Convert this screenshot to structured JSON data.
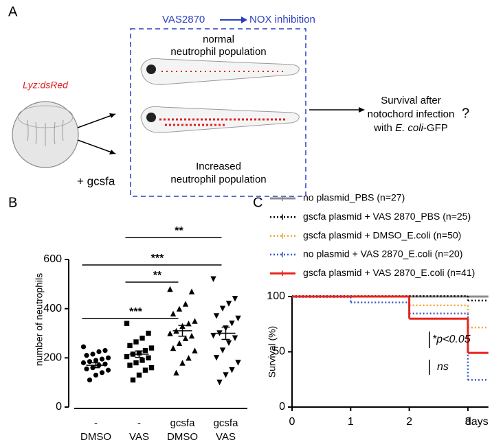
{
  "panel_labels": [
    "A",
    "B",
    "C"
  ],
  "panel_a": {
    "strain": "Lyz:dsRed",
    "treatment": "+ gcsfa",
    "drug": "VAS2870",
    "effect": "NOX inhibition",
    "normal": [
      "normal",
      "neutrophil population"
    ],
    "increased": [
      "Increased",
      "neutrophil population"
    ],
    "outcome": [
      "Survival after",
      "notochord infection"
    ],
    "outcome_last": [
      "with ",
      "E. coli",
      "-GFP"
    ],
    "question": "?"
  },
  "chart_data": [
    {
      "type": "dotplot",
      "ylabel": "number of neutrophils",
      "categories": [
        [
          "-",
          "DMSO"
        ],
        [
          "-",
          "VAS"
        ],
        [
          "gcsfa",
          "DMSO"
        ],
        [
          "gcsfa",
          "VAS"
        ]
      ],
      "markers": [
        "circle",
        "square",
        "triangle",
        "triangle-down"
      ],
      "color": "#000000",
      "points": [
        [
          245,
          230,
          225,
          215,
          210,
          200,
          195,
          190,
          185,
          180,
          175,
          170,
          160,
          155,
          150,
          140,
          130,
          110
        ],
        [
          340,
          300,
          280,
          265,
          250,
          240,
          230,
          220,
          215,
          205,
          200,
          190,
          180,
          170,
          160,
          150,
          130,
          110
        ],
        [
          480,
          470,
          420,
          400,
          380,
          350,
          340,
          330,
          310,
          300,
          290,
          280,
          260,
          240,
          230,
          200,
          180,
          140
        ],
        [
          520,
          440,
          420,
          400,
          370,
          360,
          340,
          320,
          300,
          290,
          280,
          260,
          230,
          200,
          180,
          150,
          130,
          100
        ]
      ],
      "means": [
        170,
        215,
        310,
        300
      ],
      "sem": [
        10,
        13,
        22,
        25
      ],
      "ylim": [
        0,
        600
      ],
      "yticks": [
        0,
        200,
        400,
        600
      ],
      "comparisons": [
        {
          "from": 0,
          "to": 2,
          "label": "***"
        },
        {
          "from": 0,
          "to": 3,
          "label": "***"
        },
        {
          "from": 1,
          "to": 2,
          "label": "**"
        },
        {
          "from": 1,
          "to": 3,
          "label": "**"
        }
      ]
    },
    {
      "type": "survival",
      "ylabel": "Survival (%)",
      "xlabel": "days",
      "x": [
        0,
        1,
        2,
        3
      ],
      "xlim": [
        0,
        3.35
      ],
      "xticks": [
        0,
        1,
        2,
        3
      ],
      "ylim": [
        0,
        100
      ],
      "yticks": [
        0,
        50,
        100
      ],
      "series": [
        {
          "name": "no plasmid_PBS (n=27)",
          "color": "#8c8c8c",
          "dash": "solid",
          "values": [
            100,
            100,
            100,
            100
          ]
        },
        {
          "name": "gscfa plasmid + VAS 2870_PBS (n=25)",
          "color": "#000000",
          "dash": "dotted",
          "values": [
            100,
            100,
            100,
            96
          ]
        },
        {
          "name": "gscfa plasmid + DMSO_E.coli (n=50)",
          "color": "#f0a030",
          "dash": "dotted",
          "values": [
            100,
            100,
            92,
            72
          ]
        },
        {
          "name": "no plasmid + VAS 2870_E.coli (n=20)",
          "color": "#3355cc",
          "dash": "dotted",
          "values": [
            100,
            95,
            85,
            25
          ]
        },
        {
          "name": "gscfa plasmid + VAS 2870_E.coli (n=41)",
          "color": "#e8231e",
          "dash": "solid",
          "values": [
            100,
            100,
            80,
            49
          ]
        }
      ],
      "annotations": [
        "*p<0.05",
        "ns"
      ]
    }
  ]
}
